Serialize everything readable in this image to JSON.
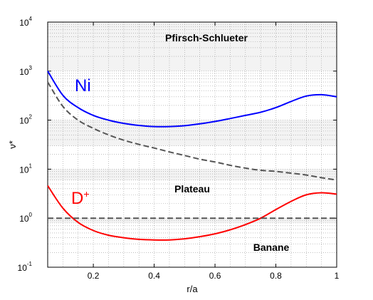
{
  "chart_data": {
    "type": "line",
    "xlabel": "r/a",
    "ylabel": "ν*",
    "xlim": [
      0.05,
      1.0
    ],
    "ylim": [
      0.1,
      10000
    ],
    "y_scale": "log",
    "grid": "dotted, major and minor",
    "xticks": [
      "0.2",
      "0.4",
      "0.6",
      "0.8",
      "1"
    ],
    "xtick_values": [
      0.2,
      0.4,
      0.6,
      0.8,
      1.0
    ],
    "yticks": [
      {
        "base": "10",
        "exp": "-1",
        "value": 0.1
      },
      {
        "base": "10",
        "exp": "0",
        "value": 1
      },
      {
        "base": "10",
        "exp": "1",
        "value": 10
      },
      {
        "base": "10",
        "exp": "2",
        "value": 100
      },
      {
        "base": "10",
        "exp": "3",
        "value": 1000
      },
      {
        "base": "10",
        "exp": "4",
        "value": 10000
      }
    ],
    "regions": {
      "pfirsch_schlueter": "Pfirsch-Schlueter",
      "plateau": "Plateau",
      "banane": "Banane"
    },
    "series": [
      {
        "name": "Ni",
        "color": "#0000ff",
        "style": "solid",
        "x": [
          0.05,
          0.1,
          0.15,
          0.2,
          0.25,
          0.3,
          0.35,
          0.4,
          0.45,
          0.5,
          0.55,
          0.6,
          0.65,
          0.7,
          0.75,
          0.8,
          0.85,
          0.9,
          0.95,
          1.0
        ],
        "y": [
          1000,
          320,
          180,
          125,
          100,
          86,
          78,
          74,
          74,
          77,
          84,
          94,
          108,
          125,
          145,
          180,
          240,
          310,
          330,
          300
        ]
      },
      {
        "name": "",
        "color": "#555555",
        "style": "dashed",
        "x": [
          0.05,
          0.1,
          0.15,
          0.2,
          0.25,
          0.3,
          0.35,
          0.4,
          0.45,
          0.5,
          0.55,
          0.6,
          0.65,
          0.7,
          0.75,
          0.8,
          0.85,
          0.9,
          0.95,
          1.0
        ],
        "y": [
          600,
          190,
          100,
          68,
          50,
          39,
          32,
          27,
          22.5,
          19,
          16,
          14,
          12,
          10.5,
          9.5,
          9,
          8.3,
          7.6,
          6.7,
          6
        ]
      },
      {
        "name": "D+",
        "color": "#ff0000",
        "style": "solid",
        "x": [
          0.05,
          0.1,
          0.15,
          0.2,
          0.25,
          0.3,
          0.35,
          0.4,
          0.45,
          0.5,
          0.55,
          0.6,
          0.65,
          0.7,
          0.75,
          0.8,
          0.85,
          0.9,
          0.95,
          1.0
        ],
        "y": [
          4.6,
          1.6,
          0.82,
          0.56,
          0.45,
          0.4,
          0.37,
          0.36,
          0.36,
          0.38,
          0.42,
          0.48,
          0.58,
          0.74,
          1.0,
          1.5,
          2.2,
          3.0,
          3.3,
          3.1
        ]
      },
      {
        "name": "",
        "color": "#555555",
        "style": "dashed",
        "x": [
          0.05,
          1.0
        ],
        "y": [
          1,
          1
        ]
      }
    ],
    "series_labels": {
      "ni": "Ni",
      "d_base": "D",
      "d_sup": "+"
    }
  }
}
